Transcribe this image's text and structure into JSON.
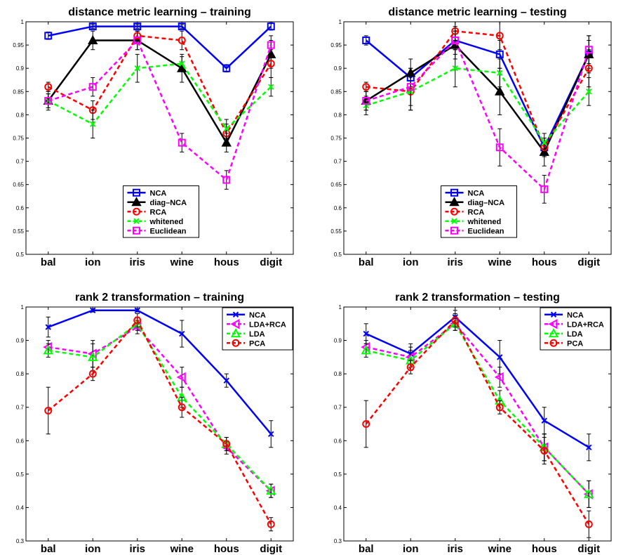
{
  "chart_data": [
    {
      "type": "line",
      "title": "distance metric learning – training",
      "categories": [
        "bal",
        "ion",
        "iris",
        "wine",
        "hous",
        "digit"
      ],
      "ylim": [
        0.5,
        1
      ],
      "yticks": [
        "0.5",
        "0.55",
        "0.6",
        "0.65",
        "0.7",
        "0.75",
        "0.8",
        "0.85",
        "0.9",
        "0.95",
        "1"
      ],
      "legend_position": "bottom-center",
      "series": [
        {
          "name": "NCA",
          "color": "#0000ff",
          "dash": "solid",
          "marker": "square",
          "values": [
            0.97,
            0.99,
            0.99,
            0.99,
            0.9,
            0.99
          ],
          "errors": [
            0.008,
            0.004,
            0.004,
            0.004,
            0.008,
            0.008
          ]
        },
        {
          "name": "diag–NCA",
          "color": "#000000",
          "dash": "solid",
          "marker": "triangle",
          "values": [
            0.83,
            0.96,
            0.96,
            0.9,
            0.74,
            0.93
          ],
          "errors": [
            0.02,
            0.02,
            0.02,
            0.03,
            0.02,
            0.03
          ]
        },
        {
          "name": "RCA",
          "color": "#ff0000",
          "dash": "dashed",
          "marker": "circle",
          "values": [
            0.86,
            0.81,
            0.97,
            0.96,
            0.76,
            0.91
          ],
          "errors": [
            0.01,
            0.02,
            0.01,
            0.02,
            0.02,
            0.03
          ]
        },
        {
          "name": "whitened",
          "color": "#00ff00",
          "dash": "dashed",
          "marker": "x",
          "values": [
            0.83,
            0.78,
            0.9,
            0.91,
            0.77,
            0.86
          ],
          "errors": [
            0.015,
            0.03,
            0.03,
            0.015,
            0.02,
            0.02
          ]
        },
        {
          "name": "Euclidean",
          "color": "#ff00ff",
          "dash": "dashed",
          "marker": "square",
          "values": [
            0.83,
            0.86,
            0.96,
            0.74,
            0.66,
            0.95
          ],
          "errors": [
            0.015,
            0.02,
            0.02,
            0.02,
            0.02,
            0.02
          ]
        }
      ]
    },
    {
      "type": "line",
      "title": "distance metric learning – testing",
      "categories": [
        "bal",
        "ion",
        "iris",
        "wine",
        "hous",
        "digit"
      ],
      "ylim": [
        0.5,
        1
      ],
      "yticks": [
        "0.5",
        "0.55",
        "0.6",
        "0.65",
        "0.7",
        "0.75",
        "0.8",
        "0.85",
        "0.9",
        "0.95",
        "1"
      ],
      "legend_position": "bottom-center",
      "series": [
        {
          "name": "NCA",
          "color": "#0000ff",
          "dash": "solid",
          "marker": "square",
          "values": [
            0.96,
            0.88,
            0.96,
            0.93,
            0.73,
            0.93
          ],
          "errors": [
            0.01,
            0.02,
            0.02,
            0.03,
            0.02,
            0.03
          ]
        },
        {
          "name": "diag–NCA",
          "color": "#000000",
          "dash": "solid",
          "marker": "triangle",
          "values": [
            0.83,
            0.89,
            0.95,
            0.85,
            0.72,
            0.93
          ],
          "errors": [
            0.02,
            0.03,
            0.03,
            0.05,
            0.03,
            0.04
          ]
        },
        {
          "name": "RCA",
          "color": "#ff0000",
          "dash": "dashed",
          "marker": "circle",
          "values": [
            0.86,
            0.85,
            0.98,
            0.97,
            0.73,
            0.9
          ],
          "errors": [
            0.01,
            0.04,
            0.02,
            0.03,
            0.02,
            0.04
          ]
        },
        {
          "name": "whitened",
          "color": "#00ff00",
          "dash": "dashed",
          "marker": "x",
          "values": [
            0.82,
            0.85,
            0.9,
            0.89,
            0.74,
            0.85
          ],
          "errors": [
            0.02,
            0.04,
            0.04,
            0.03,
            0.02,
            0.03
          ]
        },
        {
          "name": "Euclidean",
          "color": "#ff00ff",
          "dash": "dashed",
          "marker": "square",
          "values": [
            0.83,
            0.86,
            0.96,
            0.73,
            0.64,
            0.94
          ],
          "errors": [
            0.02,
            0.04,
            0.03,
            0.04,
            0.03,
            0.03
          ]
        }
      ]
    },
    {
      "type": "line",
      "title": "rank 2  transformation – training",
      "categories": [
        "bal",
        "ion",
        "iris",
        "wine",
        "hous",
        "digit"
      ],
      "ylim": [
        0.3,
        1
      ],
      "yticks": [
        "0.3",
        "0.4",
        "0.5",
        "0.6",
        "0.7",
        "0.8",
        "0.9",
        "1"
      ],
      "legend_position": "top-right",
      "series": [
        {
          "name": "NCA",
          "color": "#0000ff",
          "dash": "solid",
          "marker": "x",
          "values": [
            0.94,
            0.99,
            0.99,
            0.92,
            0.78,
            0.62
          ],
          "errors": [
            0.03,
            0.005,
            0.005,
            0.04,
            0.02,
            0.04
          ]
        },
        {
          "name": "LDA+RCA",
          "color": "#ff00ff",
          "dash": "dashed",
          "marker": "tri-left",
          "values": [
            0.88,
            0.86,
            0.94,
            0.79,
            0.58,
            0.45
          ],
          "errors": [
            0.02,
            0.04,
            0.02,
            0.03,
            0.02,
            0.02
          ]
        },
        {
          "name": "LDA",
          "color": "#00ff00",
          "dash": "dashed",
          "marker": "triangle",
          "values": [
            0.87,
            0.85,
            0.95,
            0.73,
            0.59,
            0.45
          ],
          "errors": [
            0.02,
            0.04,
            0.02,
            0.03,
            0.02,
            0.02
          ]
        },
        {
          "name": "PCA",
          "color": "#ff0000",
          "dash": "dashed",
          "marker": "circle",
          "values": [
            0.69,
            0.8,
            0.96,
            0.7,
            0.59,
            0.35
          ],
          "errors": [
            0.07,
            0.02,
            0.02,
            0.03,
            0.02,
            0.02
          ]
        }
      ]
    },
    {
      "type": "line",
      "title": "rank 2  transformation – testing",
      "categories": [
        "bal",
        "ion",
        "iris",
        "wine",
        "hous",
        "digit"
      ],
      "ylim": [
        0.3,
        1
      ],
      "yticks": [
        "0.3",
        "0.4",
        "0.5",
        "0.6",
        "0.7",
        "0.8",
        "0.9",
        "1"
      ],
      "legend_position": "top-right",
      "series": [
        {
          "name": "NCA",
          "color": "#0000ff",
          "dash": "solid",
          "marker": "x",
          "values": [
            0.92,
            0.86,
            0.97,
            0.85,
            0.66,
            0.58
          ],
          "errors": [
            0.03,
            0.03,
            0.02,
            0.05,
            0.04,
            0.04
          ]
        },
        {
          "name": "LDA+RCA",
          "color": "#ff00ff",
          "dash": "dashed",
          "marker": "tri-left",
          "values": [
            0.88,
            0.85,
            0.95,
            0.79,
            0.58,
            0.44
          ],
          "errors": [
            0.02,
            0.03,
            0.02,
            0.03,
            0.04,
            0.04
          ]
        },
        {
          "name": "LDA",
          "color": "#00ff00",
          "dash": "dashed",
          "marker": "triangle",
          "values": [
            0.87,
            0.84,
            0.95,
            0.72,
            0.58,
            0.44
          ],
          "errors": [
            0.02,
            0.03,
            0.02,
            0.03,
            0.04,
            0.04
          ]
        },
        {
          "name": "PCA",
          "color": "#ff0000",
          "dash": "dashed",
          "marker": "circle",
          "values": [
            0.65,
            0.82,
            0.96,
            0.7,
            0.57,
            0.35
          ],
          "errors": [
            0.07,
            0.02,
            0.02,
            0.02,
            0.04,
            0.04
          ]
        }
      ]
    }
  ]
}
